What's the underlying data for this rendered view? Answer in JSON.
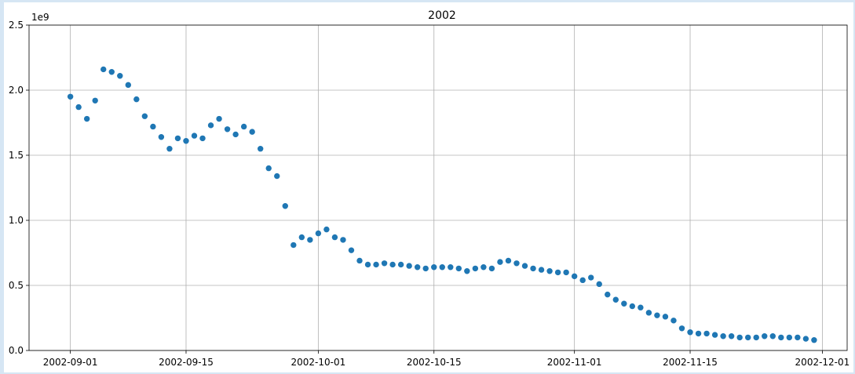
{
  "chart_data": {
    "type": "scatter",
    "title": "2002",
    "y_offset_label": "1e9",
    "color": "#1f77b4",
    "grid": true,
    "x": [
      "2002-09-01",
      "2002-09-02",
      "2002-09-03",
      "2002-09-04",
      "2002-09-05",
      "2002-09-06",
      "2002-09-07",
      "2002-09-08",
      "2002-09-09",
      "2002-09-10",
      "2002-09-11",
      "2002-09-12",
      "2002-09-13",
      "2002-09-14",
      "2002-09-15",
      "2002-09-16",
      "2002-09-17",
      "2002-09-18",
      "2002-09-19",
      "2002-09-20",
      "2002-09-21",
      "2002-09-22",
      "2002-09-23",
      "2002-09-24",
      "2002-09-25",
      "2002-09-26",
      "2002-09-27",
      "2002-09-28",
      "2002-09-29",
      "2002-09-30",
      "2002-10-01",
      "2002-10-02",
      "2002-10-03",
      "2002-10-04",
      "2002-10-05",
      "2002-10-06",
      "2002-10-07",
      "2002-10-08",
      "2002-10-09",
      "2002-10-10",
      "2002-10-11",
      "2002-10-12",
      "2002-10-13",
      "2002-10-14",
      "2002-10-15",
      "2002-10-16",
      "2002-10-17",
      "2002-10-18",
      "2002-10-19",
      "2002-10-20",
      "2002-10-21",
      "2002-10-22",
      "2002-10-23",
      "2002-10-24",
      "2002-10-25",
      "2002-10-26",
      "2002-10-27",
      "2002-10-28",
      "2002-10-29",
      "2002-10-30",
      "2002-10-31",
      "2002-11-01",
      "2002-11-02",
      "2002-11-03",
      "2002-11-04",
      "2002-11-05",
      "2002-11-06",
      "2002-11-07",
      "2002-11-08",
      "2002-11-09",
      "2002-11-10",
      "2002-11-11",
      "2002-11-12",
      "2002-11-13",
      "2002-11-14",
      "2002-11-15",
      "2002-11-16",
      "2002-11-17",
      "2002-11-18",
      "2002-11-19",
      "2002-11-20",
      "2002-11-21",
      "2002-11-22",
      "2002-11-23",
      "2002-11-24",
      "2002-11-25",
      "2002-11-26",
      "2002-11-27",
      "2002-11-28",
      "2002-11-29",
      "2002-11-30"
    ],
    "values": [
      1.95,
      1.87,
      1.78,
      1.92,
      2.16,
      2.14,
      2.11,
      2.04,
      1.93,
      1.8,
      1.72,
      1.64,
      1.55,
      1.63,
      1.61,
      1.65,
      1.63,
      1.73,
      1.78,
      1.7,
      1.66,
      1.72,
      1.68,
      1.55,
      1.4,
      1.34,
      1.11,
      0.81,
      0.87,
      0.85,
      0.9,
      0.93,
      0.87,
      0.85,
      0.77,
      0.69,
      0.66,
      0.66,
      0.67,
      0.66,
      0.66,
      0.65,
      0.64,
      0.63,
      0.64,
      0.64,
      0.64,
      0.63,
      0.61,
      0.63,
      0.64,
      0.63,
      0.68,
      0.69,
      0.67,
      0.65,
      0.63,
      0.62,
      0.61,
      0.6,
      0.6,
      0.57,
      0.54,
      0.56,
      0.51,
      0.43,
      0.39,
      0.36,
      0.34,
      0.33,
      0.29,
      0.27,
      0.26,
      0.23,
      0.17,
      0.14,
      0.13,
      0.13,
      0.12,
      0.11,
      0.11,
      0.1,
      0.1,
      0.1,
      0.11,
      0.11,
      0.1,
      0.1,
      0.1,
      0.09,
      0.08
    ],
    "xlim": [
      "2002-08-27",
      "2002-12-04"
    ],
    "xticks": [
      "2002-09-01",
      "2002-09-15",
      "2002-10-01",
      "2002-10-15",
      "2002-11-01",
      "2002-11-15",
      "2002-12-01"
    ],
    "ylim": [
      0,
      2.5
    ],
    "yticks": [
      {
        "value": 0,
        "label": "0.0"
      },
      {
        "value": 0.5,
        "label": "0.5"
      },
      {
        "value": 1,
        "label": "1.0"
      },
      {
        "value": 1.5,
        "label": "1.5"
      },
      {
        "value": 2,
        "label": "2.0"
      },
      {
        "value": 2.5,
        "label": "2.5"
      }
    ]
  }
}
